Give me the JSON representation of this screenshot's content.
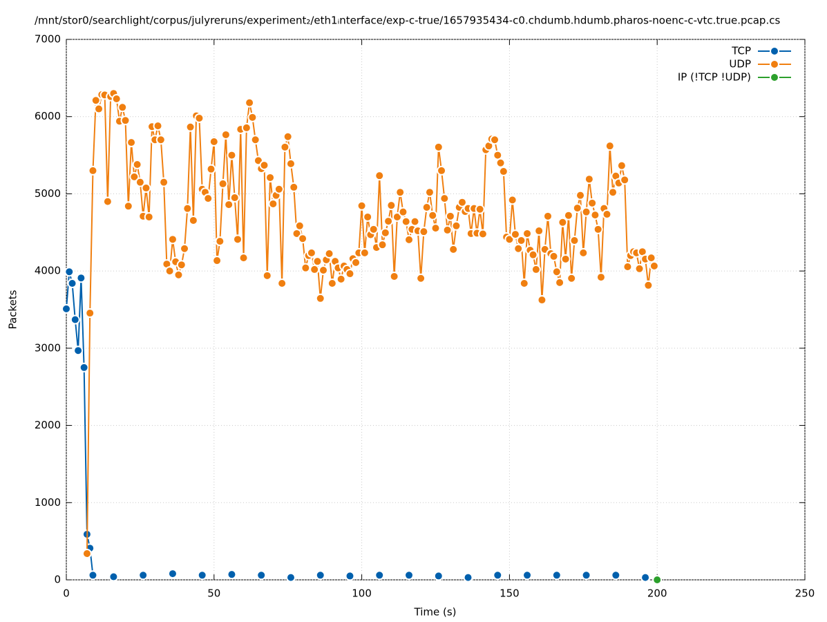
{
  "chart_data": {
    "type": "line",
    "title": "/mnt/stor0/searchlight/corpus/julyreruns/experiment₂/eth1ᵢnterface/exp-c-true/1657935434-c0.chdumb.hdumb.pharos-noenc-c-vtc.true.pcap.cs",
    "x_label": "Time (s)",
    "y_label": "Packets",
    "xlim": [
      0,
      250
    ],
    "ylim": [
      0,
      7000
    ],
    "xticks": [
      0,
      50,
      100,
      150,
      200,
      250
    ],
    "yticks": [
      0,
      1000,
      2000,
      3000,
      4000,
      5000,
      6000,
      7000
    ],
    "grid": true,
    "legend": "top-right",
    "x": [
      0,
      1,
      2,
      3,
      4,
      5,
      6,
      7,
      8,
      9,
      10,
      11,
      12,
      13,
      14,
      15,
      16,
      17,
      18,
      19,
      20,
      21,
      22,
      23,
      24,
      25,
      26,
      27,
      28,
      29,
      30,
      31,
      32,
      33,
      34,
      35,
      36,
      37,
      38,
      39,
      40,
      41,
      42,
      43,
      44,
      45,
      46,
      47,
      48,
      49,
      50,
      51,
      52,
      53,
      54,
      55,
      56,
      57,
      58,
      59,
      60,
      61,
      62,
      63,
      64,
      65,
      66,
      67,
      68,
      69,
      70,
      71,
      72,
      73,
      74,
      75,
      76,
      77,
      78,
      79,
      80,
      81,
      82,
      83,
      84,
      85,
      86,
      87,
      88,
      89,
      90,
      91,
      92,
      93,
      94,
      95,
      96,
      97,
      98,
      99,
      100,
      101,
      102,
      103,
      104,
      105,
      106,
      107,
      108,
      109,
      110,
      111,
      112,
      113,
      114,
      115,
      116,
      117,
      118,
      119,
      120,
      121,
      122,
      123,
      124,
      125,
      126,
      127,
      128,
      129,
      130,
      131,
      132,
      133,
      134,
      135,
      136,
      137,
      138,
      139,
      140,
      141,
      142,
      143,
      144,
      145,
      146,
      147,
      148,
      149,
      150,
      151,
      152,
      153,
      154,
      155,
      156,
      157,
      158,
      159,
      160,
      161,
      162,
      163,
      164,
      165,
      166,
      167,
      168,
      169,
      170,
      171,
      172,
      173,
      174,
      175,
      176,
      177,
      178,
      179,
      180,
      181,
      182,
      183,
      184,
      185,
      186,
      187,
      188,
      189,
      190,
      191,
      192,
      193,
      194,
      195,
      196,
      197,
      198,
      199,
      200
    ],
    "series": [
      {
        "name": "TCP",
        "color": "#0060ad",
        "values": [
          3510,
          3990,
          3840,
          3370,
          2970,
          3910,
          2750,
          590,
          410,
          60,
          null,
          null,
          null,
          null,
          null,
          null,
          40,
          null,
          null,
          null,
          null,
          null,
          null,
          null,
          null,
          null,
          60,
          null,
          null,
          null,
          null,
          null,
          null,
          null,
          null,
          null,
          80,
          null,
          null,
          null,
          null,
          null,
          null,
          null,
          null,
          null,
          60,
          null,
          null,
          null,
          null,
          null,
          null,
          null,
          null,
          null,
          70,
          null,
          null,
          null,
          null,
          null,
          null,
          null,
          null,
          null,
          60,
          null,
          null,
          null,
          null,
          null,
          null,
          null,
          null,
          null,
          30,
          null,
          null,
          null,
          null,
          null,
          null,
          null,
          null,
          null,
          60,
          null,
          null,
          null,
          null,
          null,
          null,
          null,
          null,
          null,
          50,
          null,
          null,
          null,
          null,
          null,
          null,
          null,
          null,
          null,
          60,
          null,
          null,
          null,
          null,
          null,
          null,
          null,
          null,
          null,
          60,
          null,
          null,
          null,
          null,
          null,
          null,
          null,
          null,
          null,
          50,
          null,
          null,
          null,
          null,
          null,
          null,
          null,
          null,
          null,
          30,
          null,
          null,
          null,
          null,
          null,
          null,
          null,
          null,
          null,
          60,
          null,
          null,
          null,
          null,
          null,
          null,
          null,
          null,
          null,
          60,
          null,
          null,
          null,
          null,
          null,
          null,
          null,
          null,
          null,
          60,
          null,
          null,
          null,
          null,
          null,
          null,
          null,
          null,
          null,
          60,
          null,
          null,
          null,
          null,
          null,
          null,
          null,
          null,
          null,
          60,
          null,
          null,
          null,
          null,
          null,
          null,
          null,
          null,
          null,
          30,
          null,
          null,
          null,
          null
        ]
      },
      {
        "name": "UDP",
        "color": "#f07f10",
        "values": [
          null,
          null,
          null,
          null,
          null,
          null,
          null,
          340,
          3455,
          5300,
          6210,
          6100,
          6285,
          6280,
          4900,
          6260,
          6300,
          6230,
          5940,
          6120,
          5950,
          4840,
          5665,
          5220,
          5380,
          5150,
          4710,
          5075,
          4700,
          5870,
          5700,
          5880,
          5700,
          5150,
          4090,
          4000,
          4410,
          4120,
          3950,
          4080,
          4290,
          4810,
          5865,
          4655,
          6010,
          5980,
          5060,
          5020,
          4940,
          5320,
          5675,
          4135,
          4385,
          5130,
          5765,
          4860,
          5500,
          4950,
          4410,
          5835,
          4170,
          5855,
          6180,
          5990,
          5700,
          5430,
          5325,
          5370,
          3940,
          5210,
          4870,
          4980,
          5060,
          3840,
          5605,
          5740,
          5390,
          5085,
          4485,
          4585,
          4420,
          4040,
          4200,
          4235,
          4020,
          4125,
          3645,
          4010,
          4145,
          4225,
          3840,
          4125,
          4040,
          3895,
          4065,
          4020,
          3965,
          4160,
          4110,
          4235,
          4845,
          4235,
          4700,
          4470,
          4540,
          4305,
          5235,
          4340,
          4495,
          4645,
          4850,
          3930,
          4700,
          5020,
          4765,
          4640,
          4405,
          4540,
          4640,
          4520,
          3905,
          4510,
          4825,
          5020,
          4720,
          4555,
          5605,
          5300,
          4940,
          4530,
          4710,
          4280,
          4585,
          4825,
          4890,
          4770,
          4810,
          4485,
          4810,
          4490,
          4800,
          4480,
          5570,
          5620,
          5710,
          5700,
          5500,
          5400,
          5290,
          4440,
          4410,
          4920,
          4475,
          4290,
          4395,
          3840,
          4485,
          4270,
          4210,
          4020,
          4520,
          3625,
          4280,
          4710,
          4225,
          4190,
          3990,
          3850,
          4630,
          4155,
          4720,
          3905,
          4395,
          4815,
          4980,
          4235,
          4765,
          5190,
          4880,
          4725,
          4540,
          3920,
          4810,
          4735,
          5620,
          5020,
          5230,
          5140,
          5365,
          5180,
          4055,
          4200,
          4250,
          4235,
          4030,
          4250,
          4155,
          3815,
          4170,
          4065,
          null
        ]
      },
      {
        "name": "IP (!TCP  !UDP)",
        "color": "#2ca02c",
        "values": [
          null,
          null,
          null,
          null,
          null,
          null,
          null,
          null,
          null,
          null,
          null,
          null,
          null,
          null,
          null,
          null,
          null,
          null,
          null,
          null,
          null,
          null,
          null,
          null,
          null,
          null,
          null,
          null,
          null,
          null,
          null,
          null,
          null,
          null,
          null,
          null,
          null,
          null,
          null,
          null,
          null,
          null,
          null,
          null,
          null,
          null,
          null,
          null,
          null,
          null,
          null,
          null,
          null,
          null,
          null,
          null,
          null,
          null,
          null,
          null,
          null,
          null,
          null,
          null,
          null,
          null,
          null,
          null,
          null,
          null,
          null,
          null,
          null,
          null,
          null,
          null,
          null,
          null,
          null,
          null,
          null,
          null,
          null,
          null,
          null,
          null,
          null,
          null,
          null,
          null,
          null,
          null,
          null,
          null,
          null,
          null,
          null,
          null,
          null,
          null,
          null,
          null,
          null,
          null,
          null,
          null,
          null,
          null,
          null,
          null,
          null,
          null,
          null,
          null,
          null,
          null,
          null,
          null,
          null,
          null,
          null,
          null,
          null,
          null,
          null,
          null,
          null,
          null,
          null,
          null,
          null,
          null,
          null,
          null,
          null,
          null,
          null,
          null,
          null,
          null,
          null,
          null,
          null,
          null,
          null,
          null,
          null,
          null,
          null,
          null,
          null,
          null,
          null,
          null,
          null,
          null,
          null,
          null,
          null,
          null,
          null,
          null,
          null,
          null,
          null,
          null,
          null,
          null,
          null,
          null,
          null,
          null,
          null,
          null,
          null,
          null,
          null,
          null,
          null,
          null,
          null,
          null,
          null,
          null,
          null,
          null,
          null,
          null,
          null,
          null,
          null,
          null,
          null,
          null,
          null,
          null,
          null,
          null,
          null,
          null,
          0
        ]
      }
    ]
  }
}
